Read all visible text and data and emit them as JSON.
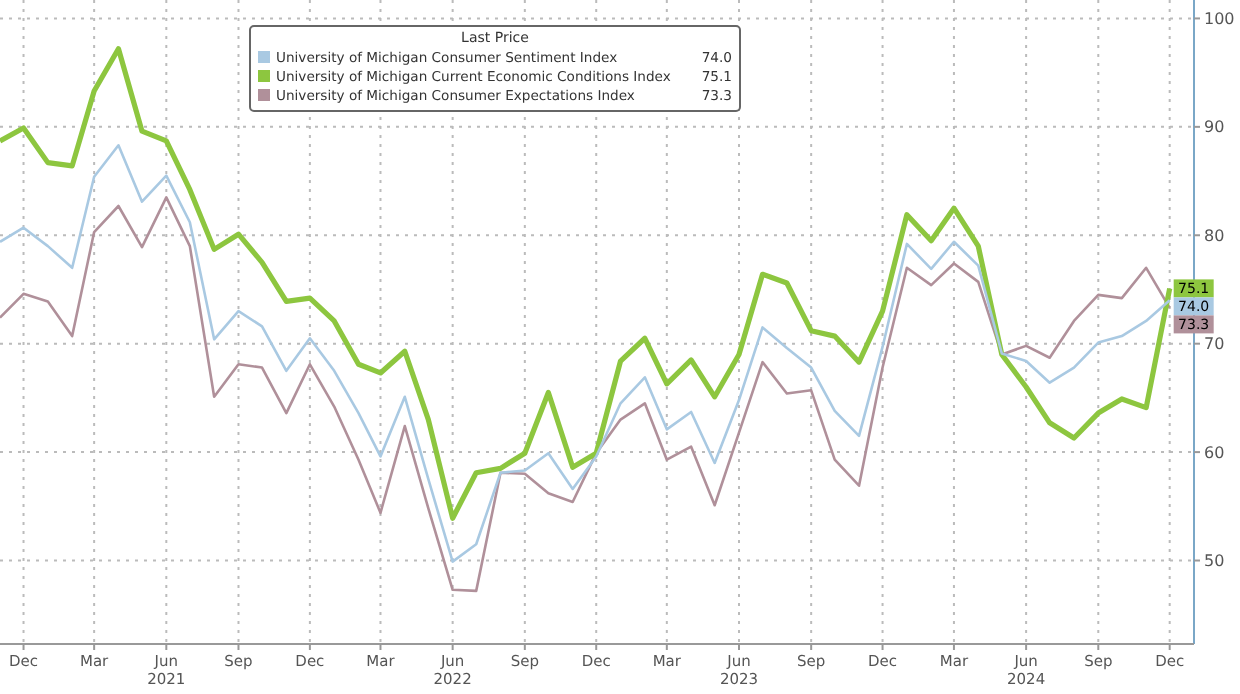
{
  "chart_data": {
    "type": "line",
    "legend_title": "Last Price",
    "legend": "top",
    "grid": true,
    "marker": "none",
    "line_style": "solid",
    "x": [
      "2020-11",
      "2020-12",
      "2021-01",
      "2021-02",
      "2021-03",
      "2021-04",
      "2021-05",
      "2021-06",
      "2021-07",
      "2021-08",
      "2021-09",
      "2021-10",
      "2021-11",
      "2021-12",
      "2022-01",
      "2022-02",
      "2022-03",
      "2022-04",
      "2022-05",
      "2022-06",
      "2022-07",
      "2022-08",
      "2022-09",
      "2022-10",
      "2022-11",
      "2022-12",
      "2023-01",
      "2023-02",
      "2023-03",
      "2023-04",
      "2023-05",
      "2023-06",
      "2023-07",
      "2023-08",
      "2023-09",
      "2023-10",
      "2023-11",
      "2023-12",
      "2024-01",
      "2024-02",
      "2024-03",
      "2024-04",
      "2024-05",
      "2024-06",
      "2024-07",
      "2024-08",
      "2024-09",
      "2024-10",
      "2024-11",
      "2024-12"
    ],
    "xlim": [
      "2020-11-01",
      "2025-01-01"
    ],
    "xticks": [
      {
        "value": "2020-12",
        "label": "Dec"
      },
      {
        "value": "2021-03",
        "label": "Mar"
      },
      {
        "value": "2021-06",
        "label": "Jun\n2021"
      },
      {
        "value": "2021-09",
        "label": "Sep"
      },
      {
        "value": "2021-12",
        "label": "Dec"
      },
      {
        "value": "2022-03",
        "label": "Mar"
      },
      {
        "value": "2022-06",
        "label": "Jun\n2022"
      },
      {
        "value": "2022-09",
        "label": "Sep"
      },
      {
        "value": "2022-12",
        "label": "Dec"
      },
      {
        "value": "2023-03",
        "label": "Mar"
      },
      {
        "value": "2023-06",
        "label": "Jun\n2023"
      },
      {
        "value": "2023-09",
        "label": "Sep"
      },
      {
        "value": "2023-12",
        "label": "Dec"
      },
      {
        "value": "2024-03",
        "label": "Mar"
      },
      {
        "value": "2024-06",
        "label": "Jun\n2024"
      },
      {
        "value": "2024-09",
        "label": "Sep"
      },
      {
        "value": "2024-12",
        "label": "Dec"
      }
    ],
    "ylim": [
      42.3,
      101.7
    ],
    "yticks": [
      50,
      60,
      70,
      80,
      90,
      100
    ],
    "series": [
      {
        "name": "University of Michigan Consumer Sentiment Index",
        "color": "#a9c9e2",
        "value_labels": [
          null,
          null,
          null,
          null,
          null,
          null,
          null,
          null,
          null,
          null,
          null,
          null,
          null,
          null,
          null,
          null,
          null,
          null,
          null,
          null,
          null,
          null,
          null,
          null,
          null,
          null,
          null,
          null,
          null,
          null,
          null,
          null,
          null,
          null,
          null,
          null,
          null,
          null,
          null,
          null,
          null,
          null,
          null,
          null,
          null,
          null,
          null,
          null,
          null,
          "74.0"
        ],
        "values": [
          79.4,
          80.7,
          79.0,
          77.0,
          85.4,
          88.3,
          83.1,
          85.5,
          81.2,
          70.4,
          73.0,
          71.6,
          67.5,
          70.5,
          67.5,
          63.6,
          59.6,
          65.1,
          57.5,
          49.9,
          51.5,
          58.1,
          58.3,
          59.9,
          56.6,
          59.6,
          64.5,
          66.9,
          62.1,
          63.7,
          59.0,
          64.8,
          71.5,
          69.6,
          67.8,
          63.8,
          61.5,
          69.7,
          79.2,
          76.9,
          79.4,
          77.2,
          69.1,
          68.4,
          66.4,
          67.8,
          70.1,
          70.7,
          72.1,
          74.0
        ]
      },
      {
        "name": "University of Michigan Current Economic Conditions Index",
        "color": "#8dc63f",
        "value_labels": [
          null,
          null,
          null,
          null,
          null,
          null,
          null,
          null,
          null,
          null,
          null,
          null,
          null,
          null,
          null,
          null,
          null,
          null,
          null,
          null,
          null,
          null,
          null,
          null,
          null,
          null,
          null,
          null,
          null,
          null,
          null,
          null,
          null,
          null,
          null,
          null,
          null,
          null,
          null,
          null,
          null,
          null,
          null,
          null,
          null,
          null,
          null,
          null,
          null,
          "75.1"
        ],
        "values": [
          88.7,
          89.9,
          86.7,
          86.4,
          93.3,
          97.2,
          89.6,
          88.7,
          84.2,
          78.7,
          80.1,
          77.5,
          73.9,
          74.2,
          72.1,
          68.1,
          67.3,
          69.3,
          63.0,
          53.9,
          58.1,
          58.5,
          59.9,
          65.5,
          58.6,
          59.9,
          68.4,
          70.5,
          66.3,
          68.5,
          65.1,
          69.0,
          76.4,
          75.6,
          71.2,
          70.7,
          68.3,
          73.0,
          81.9,
          79.5,
          82.5,
          79.0,
          69.0,
          66.0,
          62.7,
          61.3,
          63.6,
          64.9,
          64.1,
          75.1
        ]
      },
      {
        "name": "University of Michigan Consumer Expectations Index",
        "color": "#b0909a",
        "value_labels": [
          null,
          null,
          null,
          null,
          null,
          null,
          null,
          null,
          null,
          null,
          null,
          null,
          null,
          null,
          null,
          null,
          null,
          null,
          null,
          null,
          null,
          null,
          null,
          null,
          null,
          null,
          null,
          null,
          null,
          null,
          null,
          null,
          null,
          null,
          null,
          null,
          null,
          null,
          null,
          null,
          null,
          null,
          null,
          null,
          null,
          null,
          null,
          null,
          null,
          "73.3"
        ],
        "values": [
          72.4,
          74.6,
          73.9,
          70.7,
          80.3,
          82.7,
          78.9,
          83.5,
          79.0,
          65.1,
          68.1,
          67.8,
          63.6,
          68.1,
          64.2,
          59.3,
          54.4,
          62.4,
          54.8,
          47.3,
          47.2,
          58.1,
          58.0,
          56.2,
          55.4,
          59.9,
          63.0,
          64.5,
          59.3,
          60.5,
          55.1,
          61.8,
          68.3,
          65.4,
          65.7,
          59.3,
          56.9,
          67.8,
          77.0,
          75.4,
          77.4,
          75.7,
          69.0,
          69.8,
          68.7,
          72.1,
          74.5,
          74.2,
          77.0,
          73.3
        ]
      }
    ]
  }
}
